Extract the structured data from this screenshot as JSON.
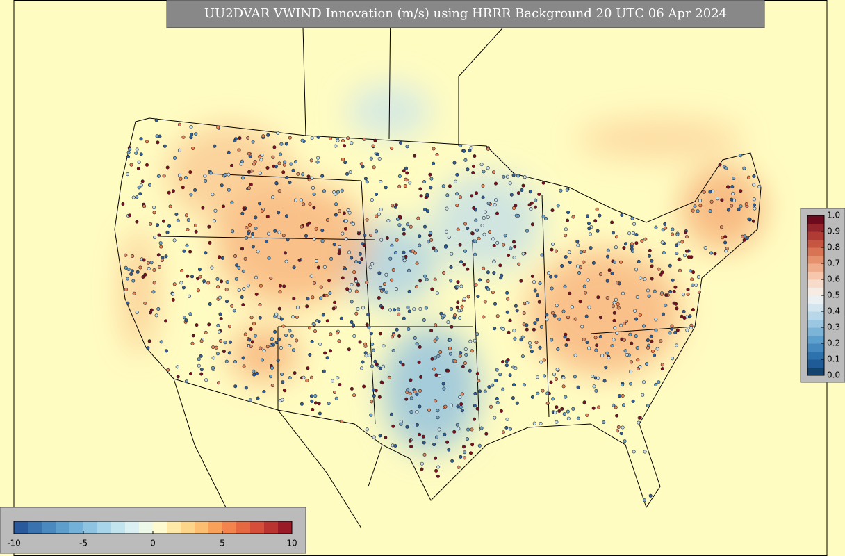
{
  "title": "UU2DVAR VWIND Innovation (m/s) using HRRR Background 20 UTC 06 Apr 2024",
  "colorbars": [
    {
      "orientation": "horizontal",
      "lim": [
        -10,
        10
      ],
      "ticks": [
        -10,
        -5,
        0,
        5,
        10
      ],
      "colors": [
        "#2b5a9c",
        "#3a72b0",
        "#4a89c0",
        "#5d9ecd",
        "#74b1d8",
        "#8ec4e2",
        "#a8d5ea",
        "#c2e4ef",
        "#daf0f2",
        "#eff9e9",
        "#fefbd0",
        "#fee9a8",
        "#fdd58a",
        "#fcbe70",
        "#f9a15b",
        "#f3844d",
        "#e66843",
        "#d44e3a",
        "#bb3330",
        "#9a1a27"
      ]
    },
    {
      "orientation": "vertical",
      "lim": [
        0,
        1
      ],
      "ticks": [
        {
          "value": 0,
          "label": "0.0"
        },
        0.1,
        0.2,
        0.3,
        0.4,
        0.5,
        0.6,
        0.7,
        0.8,
        0.9,
        {
          "value": 1,
          "label": "1.0"
        }
      ],
      "colors": [
        "#14426e",
        "#1f5b96",
        "#2e72ad",
        "#4589bf",
        "#5ea0cd",
        "#7cb4d8",
        "#9bc7e2",
        "#b8d8ea",
        "#d3e6f0",
        "#ebf1f3",
        "#f6ece4",
        "#f8dccb",
        "#f6c7ad",
        "#f0ad8c",
        "#e6906d",
        "#d87354",
        "#c65542",
        "#b03a34",
        "#93242c",
        "#6d0a1e"
      ]
    }
  ]
}
